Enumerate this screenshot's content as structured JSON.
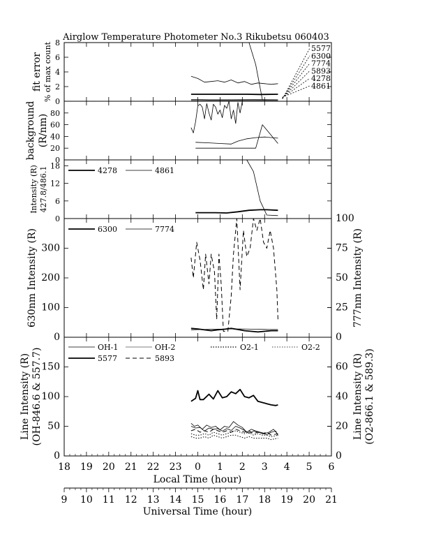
{
  "figure": {
    "title": "Airglow Temperature Photometer No.3  Rikubetsu   060403",
    "xlabel_local": "Local Time (hour)",
    "xlabel_ut": "Universal Time (hour)",
    "local_ticks": [
      "18",
      "19",
      "20",
      "21",
      "22",
      "23",
      "0",
      "1",
      "2",
      "3",
      "4",
      "5",
      "6"
    ],
    "ut_ticks": [
      "9",
      "10",
      "11",
      "12",
      "13",
      "14",
      "15",
      "16",
      "17",
      "18",
      "19",
      "20",
      "21"
    ]
  },
  "chart_data": [
    {
      "id": "fit",
      "type": "line",
      "ylabel": [
        "fit error",
        "% of max count"
      ],
      "ylim": [
        0,
        8
      ],
      "yticks": [
        "0",
        "2",
        "4",
        "6",
        "8"
      ],
      "legend": [
        "5577",
        "6300",
        "7774",
        "5893",
        "4278",
        "4861"
      ],
      "series": [
        {
          "name": "5577",
          "style": "solid-thin",
          "x": [
            23.7,
            24.0,
            24.3,
            24.6,
            24.9,
            25.2,
            25.5,
            25.8,
            26.1,
            26.4,
            26.7,
            27.0,
            27.3,
            27.6
          ],
          "values": [
            3.4,
            3.1,
            2.6,
            2.7,
            2.8,
            2.6,
            2.9,
            2.5,
            2.7,
            2.3,
            2.5,
            2.4,
            2.3,
            2.4
          ]
        },
        {
          "name": "6300",
          "style": "solid-thick",
          "x": [
            23.7,
            24.3,
            25.0,
            25.6,
            26.2,
            26.8,
            27.6
          ],
          "values": [
            0.95,
            0.95,
            0.95,
            0.95,
            0.95,
            0.92,
            0.95
          ]
        },
        {
          "name": "4278",
          "style": "solid-thin",
          "x": [
            23.7,
            24.5,
            25.5,
            26.5,
            27.6
          ],
          "values": [
            0.25,
            0.2,
            0.2,
            0.22,
            0.2
          ]
        },
        {
          "name": "4861",
          "style": "solid-thin",
          "x": [
            23.7,
            25.0,
            26.4,
            27.6
          ],
          "values": [
            0.1,
            0.1,
            0.1,
            0.1
          ]
        },
        {
          "name": "7774",
          "style": "solid-thin",
          "x": [
            26.3,
            26.6,
            26.9
          ],
          "values": [
            8.0,
            5.0,
            0.2
          ]
        }
      ]
    },
    {
      "id": "bg",
      "type": "line",
      "ylabel": [
        "background",
        "(R/nm)"
      ],
      "ylim": [
        0,
        100
      ],
      "yticks": [
        "0",
        "20",
        "40",
        "60",
        "80"
      ],
      "series": [
        {
          "name": "dark",
          "style": "solid-thin",
          "x": [
            23.7,
            23.8,
            23.9,
            24.0,
            24.1,
            24.2,
            24.3,
            24.4,
            24.5,
            24.6,
            24.7,
            24.8,
            24.9,
            25.0,
            25.1,
            25.2,
            25.3,
            25.4,
            25.5,
            25.6,
            25.7,
            25.8,
            25.9,
            26.0
          ],
          "values": [
            55,
            46,
            65,
            92,
            95,
            90,
            70,
            96,
            80,
            68,
            95,
            90,
            78,
            85,
            72,
            93,
            88,
            100,
            70,
            85,
            62,
            98,
            80,
            100
          ]
        },
        {
          "name": "gray-upper",
          "style": "solid-thin",
          "x": [
            23.9,
            24.5,
            25.0,
            25.5,
            25.8,
            26.2,
            26.6,
            27.0,
            27.6
          ],
          "values": [
            30,
            29,
            28,
            27,
            32,
            36,
            38,
            39,
            37
          ]
        },
        {
          "name": "gray-lower",
          "style": "solid-thin",
          "x": [
            23.9,
            24.3,
            24.8,
            25.3,
            25.8,
            26.2,
            26.6,
            26.9,
            27.6
          ],
          "values": [
            20,
            20,
            20,
            20,
            20,
            20,
            20,
            60,
            28
          ]
        }
      ]
    },
    {
      "id": "blue",
      "type": "line",
      "ylabel": [
        "Intensity (R)",
        "427.8/486.1"
      ],
      "ylim": [
        0,
        20
      ],
      "yticks": [
        "0",
        "6",
        "12",
        "18"
      ],
      "legend": [
        "4278",
        "4861"
      ],
      "series": [
        {
          "name": "4278",
          "style": "solid-thick",
          "x": [
            23.9,
            24.3,
            24.8,
            25.3,
            25.8,
            26.3,
            26.8,
            27.1,
            27.6
          ],
          "values": [
            2.0,
            2.0,
            2.0,
            1.9,
            2.3,
            2.8,
            3.0,
            3.0,
            2.8
          ]
        },
        {
          "name": "4861",
          "style": "solid-thin",
          "x": [
            26.2,
            26.5,
            26.8,
            27.1,
            27.6
          ],
          "values": [
            20,
            16,
            6,
            1.2,
            1.0
          ]
        }
      ]
    },
    {
      "id": "red",
      "type": "line",
      "ylabel_left": "630nm Intensity (R)",
      "ylabel_right": "777nm Intensity (R)",
      "ylim": [
        0,
        400
      ],
      "ylim_right": [
        0,
        100
      ],
      "yticks": [
        "0",
        "100",
        "200",
        "300"
      ],
      "yticks_right": [
        "0",
        "25",
        "50",
        "75",
        "100"
      ],
      "legend": [
        "6300",
        "7774"
      ],
      "series": [
        {
          "name": "6300",
          "style": "solid-thick",
          "x": [
            23.7,
            24.0,
            24.3,
            24.6,
            24.9,
            25.2,
            25.5,
            25.8,
            26.1,
            26.4,
            26.7,
            27.0,
            27.3,
            27.6
          ],
          "values": [
            30,
            28,
            25,
            22,
            25,
            27,
            30,
            26,
            22,
            20,
            18,
            20,
            22,
            22
          ]
        },
        {
          "name": "7774",
          "style": "solid-thin",
          "x": [
            23.7,
            24.2,
            24.8,
            25.4,
            26.0,
            26.6,
            27.2,
            27.6
          ],
          "values": [
            25,
            26,
            27,
            28,
            28,
            27,
            26,
            26
          ]
        },
        {
          "name": "7774-right",
          "style": "dashed",
          "axis": "right",
          "x": [
            23.7,
            23.8,
            23.95,
            24.1,
            24.25,
            24.35,
            24.5,
            24.6,
            24.75,
            24.85,
            24.95,
            25.05,
            25.15,
            25.35,
            25.5,
            25.6,
            25.75,
            25.9,
            26.05,
            26.2,
            26.35,
            26.5,
            26.65,
            26.8,
            26.95,
            27.1,
            27.25,
            27.4,
            27.55,
            27.6
          ],
          "values": [
            67,
            50,
            80,
            65,
            40,
            70,
            45,
            70,
            55,
            15,
            70,
            45,
            5,
            5,
            35,
            70,
            100,
            40,
            90,
            68,
            75,
            100,
            90,
            100,
            80,
            75,
            90,
            75,
            40,
            15
          ]
        }
      ]
    },
    {
      "id": "oh",
      "type": "line",
      "ylabel_left": [
        "Line Intensity (R)",
        "(OH-846.6 & 557.7)"
      ],
      "ylabel_right": [
        "Line Intensity (R)",
        "(O2-866.1 & 589.3)"
      ],
      "ylim": [
        0,
        200
      ],
      "ylim_right": [
        0,
        80
      ],
      "yticks": [
        "0",
        "50",
        "100",
        "150"
      ],
      "yticks_right": [
        "0",
        "20",
        "40",
        "60"
      ],
      "legend": [
        "OH-1",
        "OH-2",
        "O2-1",
        "O2-2",
        "5577",
        "5893"
      ],
      "series": [
        {
          "name": "5577",
          "style": "solid-thick",
          "x": [
            23.7,
            23.9,
            24.0,
            24.1,
            24.25,
            24.5,
            24.7,
            24.9,
            25.1,
            25.3,
            25.5,
            25.7,
            25.9,
            26.1,
            26.3,
            26.5,
            26.7,
            26.9,
            27.1,
            27.3,
            27.5,
            27.6
          ],
          "values": [
            92,
            97,
            110,
            95,
            95,
            104,
            96,
            110,
            98,
            100,
            108,
            105,
            112,
            100,
            98,
            102,
            92,
            90,
            88,
            86,
            85,
            86
          ]
        },
        {
          "name": "OH-1",
          "style": "solid-thin",
          "x": [
            23.7,
            23.85,
            24.0,
            24.2,
            24.4,
            24.6,
            24.8,
            25.0,
            25.2,
            25.4,
            25.6,
            25.8,
            26.0,
            26.2,
            26.4,
            26.6,
            26.8,
            27.0,
            27.2,
            27.4,
            27.6
          ],
          "values": [
            55,
            50,
            52,
            45,
            52,
            48,
            50,
            44,
            50,
            48,
            58,
            52,
            48,
            40,
            45,
            42,
            40,
            38,
            40,
            45,
            36
          ]
        },
        {
          "name": "OH-2",
          "style": "solid-thin",
          "x": [
            23.7,
            23.9,
            24.1,
            24.3,
            24.5,
            24.7,
            24.9,
            25.1,
            25.3,
            25.5,
            25.7,
            25.9,
            26.1,
            26.3,
            26.5,
            26.7,
            26.9,
            27.1,
            27.3,
            27.5,
            27.6
          ],
          "values": [
            50,
            47,
            48,
            42,
            47,
            45,
            46,
            42,
            46,
            43,
            50,
            47,
            43,
            38,
            42,
            40,
            38,
            36,
            40,
            42,
            34
          ]
        },
        {
          "name": "O2-1",
          "style": "dotted",
          "axis": "right",
          "x": [
            23.7,
            23.9,
            24.1,
            24.3,
            24.5,
            24.7,
            24.9,
            25.1,
            25.3,
            25.5,
            25.7,
            25.9,
            26.1,
            26.3,
            26.5,
            26.7,
            26.9,
            27.1,
            27.3,
            27.6
          ],
          "values": [
            15,
            14,
            14,
            15,
            14,
            16,
            15,
            14,
            15,
            16,
            17,
            16,
            15,
            16,
            14,
            15,
            14,
            14,
            13,
            14
          ]
        },
        {
          "name": "O2-2",
          "style": "dotted",
          "axis": "right",
          "x": [
            23.7,
            23.9,
            24.1,
            24.3,
            24.5,
            24.7,
            24.9,
            25.1,
            25.3,
            25.5,
            25.7,
            25.9,
            26.1,
            26.3,
            26.5,
            26.7,
            26.9,
            27.1,
            27.3,
            27.6
          ],
          "values": [
            13,
            12,
            12,
            13,
            12,
            14,
            13,
            12,
            13,
            14,
            14,
            13,
            12,
            13,
            12,
            12,
            12,
            12,
            11,
            12
          ]
        },
        {
          "name": "5893",
          "style": "dashed",
          "axis": "right",
          "x": [
            23.7,
            23.9,
            24.1,
            24.3,
            24.5,
            24.7,
            24.9,
            25.1,
            25.3,
            25.5,
            25.7,
            25.9,
            26.1,
            26.3,
            26.5,
            26.7,
            26.9,
            27.1,
            27.3,
            27.6
          ],
          "values": [
            17,
            18,
            16,
            17,
            16,
            18,
            17,
            16,
            17,
            16,
            18,
            17,
            16,
            17,
            15,
            16,
            15,
            16,
            14,
            15
          ]
        }
      ]
    }
  ]
}
